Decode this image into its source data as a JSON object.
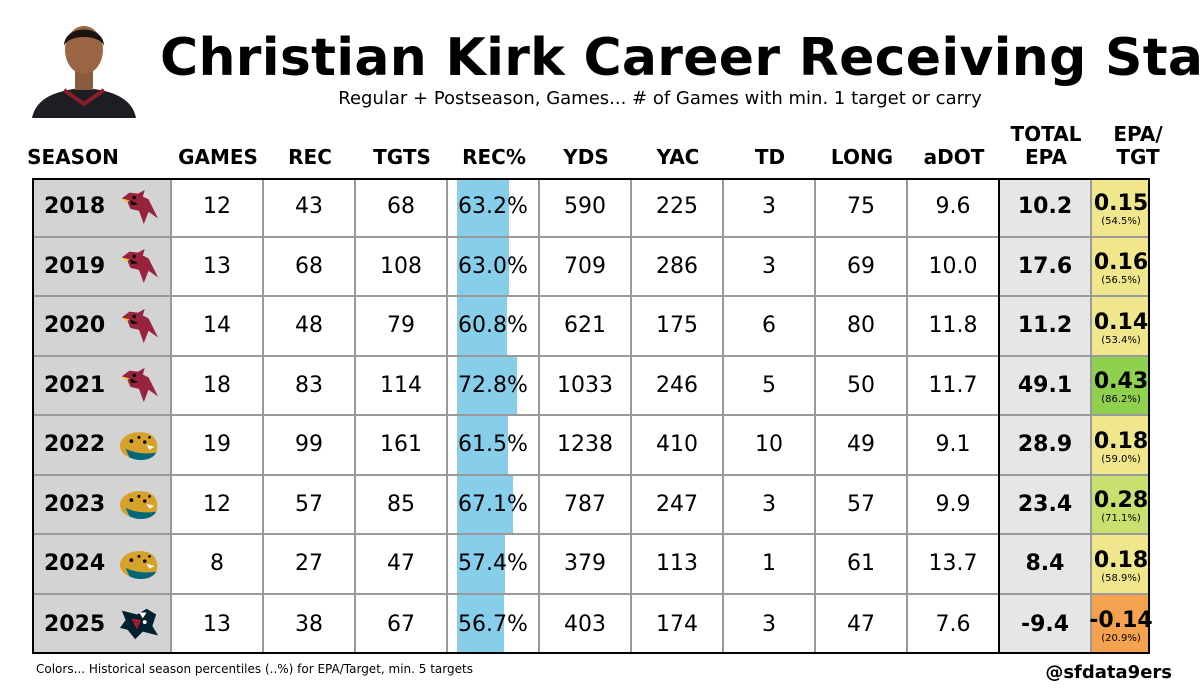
{
  "title": "Christian Kirk Career Receiving Stats",
  "subtitle": "Regular + Postseason, Games... # of Games with min. 1 target or carry",
  "footnote": "Colors... Historical season percentiles (..%) for EPA/Target, min. 5 targets",
  "handle": "@sfdata9ers",
  "colors": {
    "rec_bar": "#87ceeb",
    "season_bg": "#d3d3d3",
    "epa_bg": "#e6e6e6",
    "cardinals": "#97233f",
    "jaguars": "#006778",
    "texans": "#03202f"
  },
  "headers": {
    "season": "SEASON",
    "games": "GAMES",
    "rec": "REC",
    "tgts": "TGTS",
    "rec_pct": "REC%",
    "yds": "YDS",
    "yac": "YAC",
    "td": "TD",
    "long": "LONG",
    "adot": "aDOT",
    "total_epa_1": "TOTAL",
    "total_epa_2": "EPA",
    "epa_tgt_1": "EPA/",
    "epa_tgt_2": "TGT"
  },
  "chart_data": {
    "type": "table",
    "title": "Christian Kirk Career Receiving Stats",
    "columns": [
      "SEASON",
      "GAMES",
      "REC",
      "TGTS",
      "REC%",
      "YDS",
      "YAC",
      "TD",
      "LONG",
      "aDOT",
      "TOTAL EPA",
      "EPA/TGT"
    ],
    "rec_pct_bar_range": [
      0,
      100
    ],
    "rows": [
      {
        "season": "2018",
        "team": "cardinals-logo",
        "games": "12",
        "rec": "43",
        "tgts": "68",
        "rec_pct": "63.2%",
        "rec_pct_value": 63.2,
        "yds": "590",
        "yac": "225",
        "td": "3",
        "long": "75",
        "adot": "9.6",
        "total_epa": "10.2",
        "epa_tgt": "0.15",
        "epa_pctile": "(54.5%)",
        "epa_pctile_value": 54.5,
        "tgt_color": "#f0e68c"
      },
      {
        "season": "2019",
        "team": "cardinals-logo",
        "games": "13",
        "rec": "68",
        "tgts": "108",
        "rec_pct": "63.0%",
        "rec_pct_value": 63.0,
        "yds": "709",
        "yac": "286",
        "td": "3",
        "long": "69",
        "adot": "10.0",
        "total_epa": "17.6",
        "epa_tgt": "0.16",
        "epa_pctile": "(56.5%)",
        "epa_pctile_value": 56.5,
        "tgt_color": "#f0e68c"
      },
      {
        "season": "2020",
        "team": "cardinals-logo",
        "games": "14",
        "rec": "48",
        "tgts": "79",
        "rec_pct": "60.8%",
        "rec_pct_value": 60.8,
        "yds": "621",
        "yac": "175",
        "td": "6",
        "long": "80",
        "adot": "11.8",
        "total_epa": "11.2",
        "epa_tgt": "0.14",
        "epa_pctile": "(53.4%)",
        "epa_pctile_value": 53.4,
        "tgt_color": "#f0e68c"
      },
      {
        "season": "2021",
        "team": "cardinals-logo",
        "games": "18",
        "rec": "83",
        "tgts": "114",
        "rec_pct": "72.8%",
        "rec_pct_value": 72.8,
        "yds": "1033",
        "yac": "246",
        "td": "5",
        "long": "50",
        "adot": "11.7",
        "total_epa": "49.1",
        "epa_tgt": "0.43",
        "epa_pctile": "(86.2%)",
        "epa_pctile_value": 86.2,
        "tgt_color": "#8fd14f"
      },
      {
        "season": "2022",
        "team": "jaguars-logo",
        "games": "19",
        "rec": "99",
        "tgts": "161",
        "rec_pct": "61.5%",
        "rec_pct_value": 61.5,
        "yds": "1238",
        "yac": "410",
        "td": "10",
        "long": "49",
        "adot": "9.1",
        "total_epa": "28.9",
        "epa_tgt": "0.18",
        "epa_pctile": "(59.0%)",
        "epa_pctile_value": 59.0,
        "tgt_color": "#f0e68c"
      },
      {
        "season": "2023",
        "team": "jaguars-logo",
        "games": "12",
        "rec": "57",
        "tgts": "85",
        "rec_pct": "67.1%",
        "rec_pct_value": 67.1,
        "yds": "787",
        "yac": "247",
        "td": "3",
        "long": "57",
        "adot": "9.9",
        "total_epa": "23.4",
        "epa_tgt": "0.28",
        "epa_pctile": "(71.1%)",
        "epa_pctile_value": 71.1,
        "tgt_color": "#c8e06e"
      },
      {
        "season": "2024",
        "team": "jaguars-logo",
        "games": "8",
        "rec": "27",
        "tgts": "47",
        "rec_pct": "57.4%",
        "rec_pct_value": 57.4,
        "yds": "379",
        "yac": "113",
        "td": "1",
        "long": "61",
        "adot": "13.7",
        "total_epa": "8.4",
        "epa_tgt": "0.18",
        "epa_pctile": "(58.9%)",
        "epa_pctile_value": 58.9,
        "tgt_color": "#f0e68c"
      },
      {
        "season": "2025",
        "team": "texans-logo",
        "games": "13",
        "rec": "38",
        "tgts": "67",
        "rec_pct": "56.7%",
        "rec_pct_value": 56.7,
        "yds": "403",
        "yac": "174",
        "td": "3",
        "long": "47",
        "adot": "7.6",
        "total_epa": "-9.4",
        "epa_tgt": "-0.14",
        "epa_pctile": "(20.9%)",
        "epa_pctile_value": 20.9,
        "tgt_color": "#f4a24d"
      }
    ]
  }
}
